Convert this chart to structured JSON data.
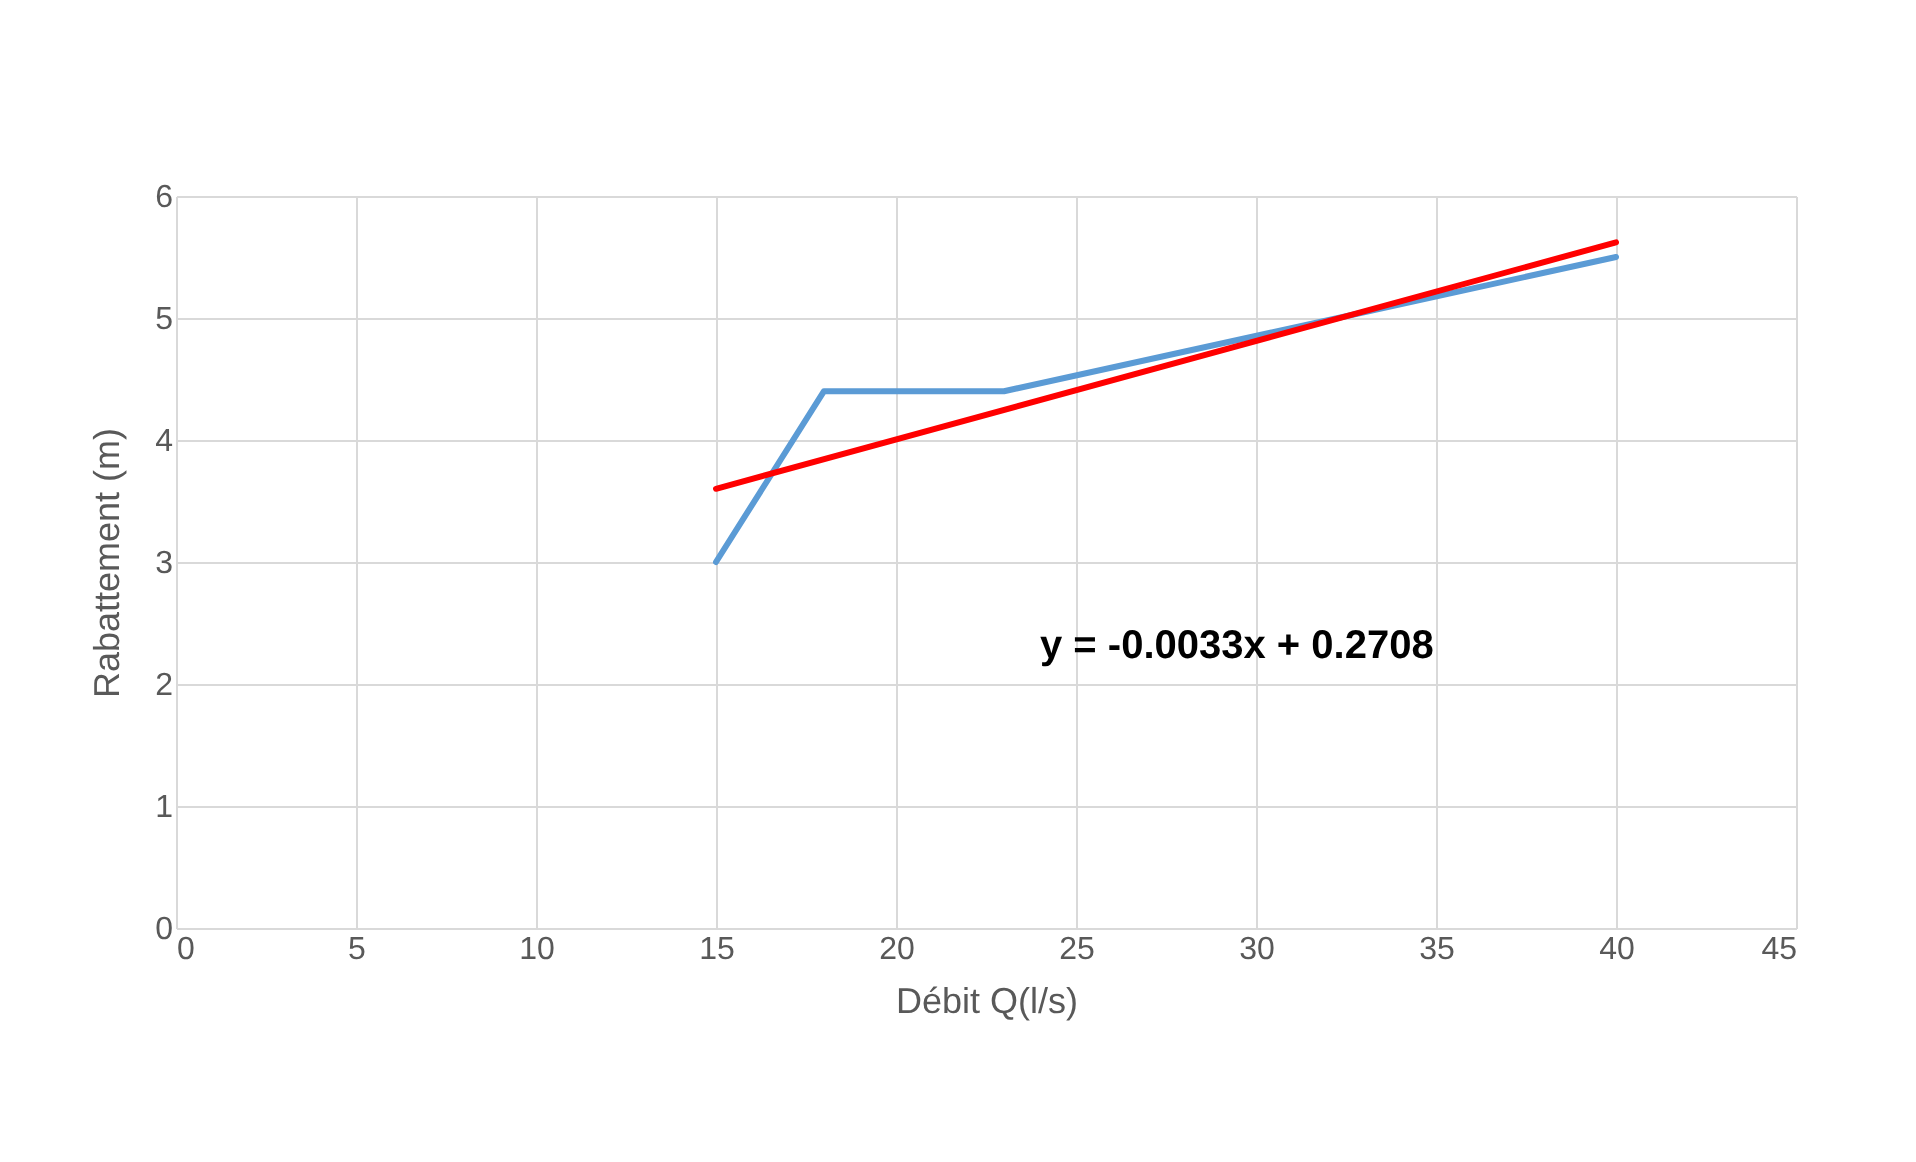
{
  "chart_data": {
    "type": "line",
    "xlabel": "Débit Q(l/s)",
    "ylabel": "Rabattement (m)",
    "xlim": [
      0,
      45
    ],
    "xticks": [
      0,
      5,
      10,
      15,
      20,
      25,
      30,
      35,
      40,
      45
    ],
    "ylim": [
      0,
      6
    ],
    "yticks": [
      0,
      1,
      2,
      3,
      4,
      5,
      6
    ],
    "grid": true,
    "legend": false,
    "series": [
      {
        "color": "#5b9bd5",
        "x": [
          15,
          18,
          23,
          40
        ],
        "values": [
          3,
          4.4,
          4.4,
          5.5
        ]
      },
      {
        "color": "#ff0000",
        "x": [
          15,
          40
        ],
        "values": [
          3.6,
          5.62
        ]
      }
    ],
    "annotations": [
      "y = -0.0033x + 0.2708"
    ]
  }
}
